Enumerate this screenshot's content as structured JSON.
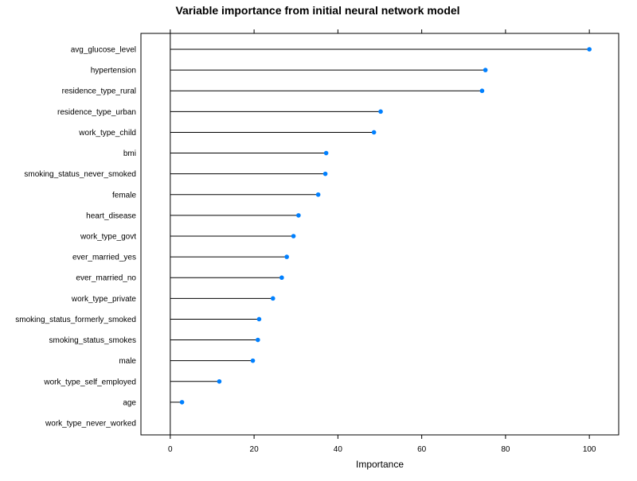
{
  "chart_data": {
    "type": "lollipop",
    "title": "Variable importance from initial neural network model",
    "xlabel": "Importance",
    "ylabel": "",
    "xlim": [
      -7,
      107
    ],
    "xticks": [
      0,
      20,
      40,
      60,
      80,
      100
    ],
    "grid": false,
    "point_color": "#0080ff",
    "line_color": "#000000",
    "categories": [
      "avg_glucose_level",
      "hypertension",
      "residence_type_rural",
      "residence_type_urban",
      "work_type_child",
      "bmi",
      "smoking_status_never_smoked",
      "female",
      "heart_disease",
      "work_type_govt",
      "ever_married_yes",
      "ever_married_no",
      "work_type_private",
      "smoking_status_formerly_smoked",
      "smoking_status_smokes",
      "male",
      "work_type_self_employed",
      "age",
      "work_type_never_worked"
    ],
    "values": [
      100,
      75.2,
      74.4,
      50.2,
      48.6,
      37.2,
      37.0,
      35.3,
      30.6,
      29.4,
      27.8,
      26.6,
      24.5,
      21.2,
      20.9,
      19.7,
      11.7,
      2.8,
      0.0
    ]
  }
}
